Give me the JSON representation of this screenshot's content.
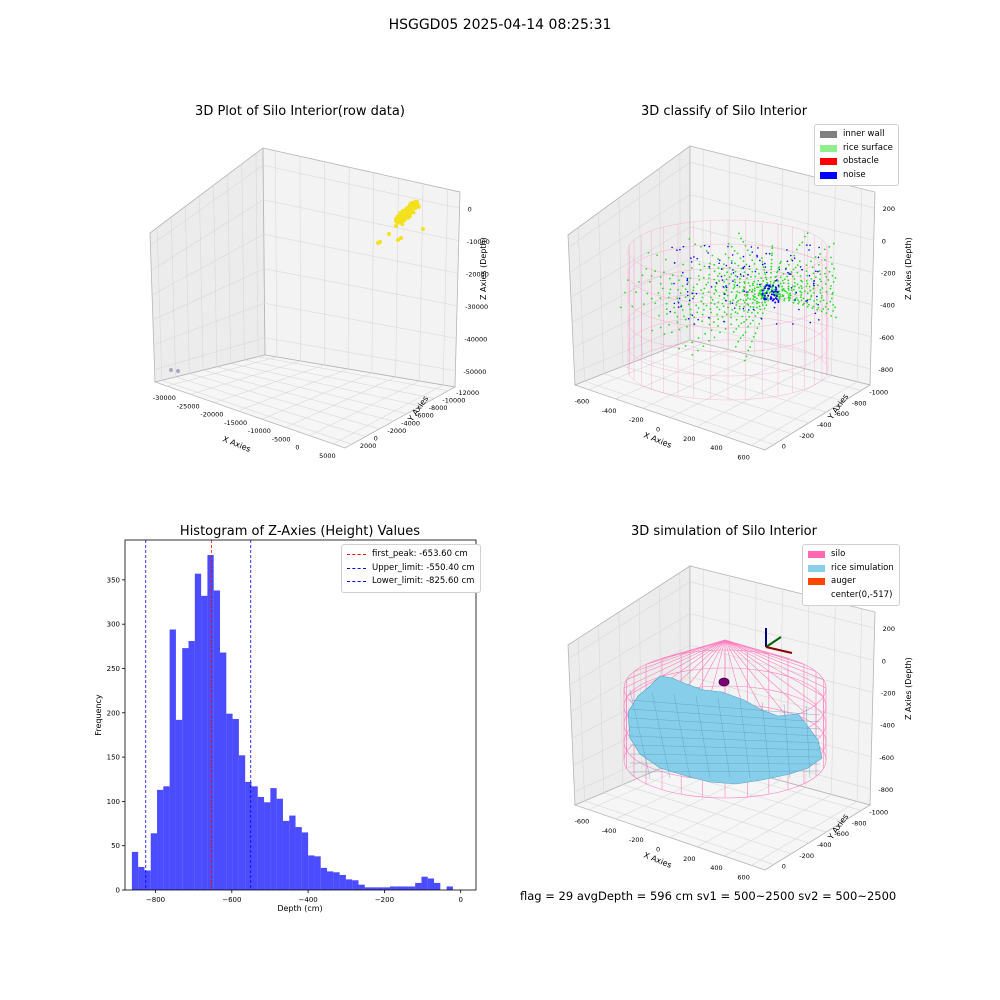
{
  "suptitle": "HSGGD05 2025-04-14 08:25:31",
  "footer": "flag = 29  avgDepth = 596 cm  sv1 = 500~2500  sv2 = 500~2500",
  "chart_data": [
    {
      "type": "scatter",
      "projection": "3d",
      "title": "3D Plot of Silo Interior(row data)",
      "xlabel": "X Axies",
      "ylabel": "Y Axies",
      "zlabel": "Z Axies (Depth)",
      "x_ticks": [
        "-30000",
        "-25000",
        "-20000",
        "-15000",
        "-10000",
        "-5000",
        "0",
        "5000"
      ],
      "y_ticks": [
        "-12000",
        "-10000",
        "-8000",
        "-6000",
        "-4000",
        "-2000",
        "0",
        "2000"
      ],
      "z_ticks": [
        "0",
        "-10000",
        "-20000",
        "-30000",
        "-40000",
        "-50000"
      ],
      "series": [
        {
          "color": "#f2e11c",
          "description": "dense cluster near x≈0, z≈0"
        },
        {
          "color": "#b0b0c8",
          "description": "two points near x≈-30000"
        }
      ],
      "grid": true
    },
    {
      "type": "scatter",
      "projection": "3d",
      "title": "3D classify of Silo Interior",
      "xlabel": "X Axies",
      "ylabel": "Y Axies",
      "zlabel": "Z Axies (Depth)",
      "x_ticks": [
        "-600",
        "-400",
        "-200",
        "0",
        "200",
        "400",
        "600"
      ],
      "y_ticks": [
        "-1000",
        "-800",
        "-600",
        "-400",
        "-200",
        "0"
      ],
      "z_ticks": [
        "200",
        "0",
        "-200",
        "-400",
        "-600",
        "-800"
      ],
      "legend": [
        {
          "label": "inner wall",
          "color": "#808080"
        },
        {
          "label": "rice surface",
          "color": "#90ee90"
        },
        {
          "label": "obstacle",
          "color": "#ff0000"
        },
        {
          "label": "noise",
          "color": "#0000ff"
        }
      ],
      "legend_position": "top-right",
      "grid": true
    },
    {
      "type": "bar",
      "title": "Histogram of Z-Axies (Height) Values",
      "xlabel": "Depth (cm)",
      "ylabel": "Frequency",
      "xlim": [
        -880,
        40
      ],
      "ylim": [
        0,
        395
      ],
      "x_ticks": [
        -800,
        -600,
        -400,
        -200,
        0
      ],
      "y_ticks": [
        0,
        50,
        100,
        150,
        200,
        250,
        300,
        350
      ],
      "bin_width": 16.5,
      "bin_start": -862,
      "values": [
        43,
        26,
        22,
        64,
        113,
        117,
        294,
        192,
        273,
        281,
        357,
        332,
        378,
        338,
        268,
        199,
        193,
        152,
        122,
        117,
        105,
        99,
        115,
        103,
        78,
        84,
        71,
        65,
        39,
        38,
        25,
        21,
        20,
        17,
        12,
        11,
        6,
        3,
        3,
        3,
        3,
        4,
        4,
        4,
        4,
        8,
        15,
        13,
        8,
        0,
        4
      ],
      "bar_color": "#0000ff",
      "lines": [
        {
          "label": "first_peak: -653.60 cm",
          "x": -653.6,
          "color": "#ff0000"
        },
        {
          "label": "Upper_limit: -550.40 cm",
          "x": -550.4,
          "color": "#0000ff"
        },
        {
          "label": "Lower_limit: -825.60 cm",
          "x": -825.6,
          "color": "#0000ff"
        }
      ],
      "legend_position": "top-right"
    },
    {
      "type": "surface",
      "projection": "3d",
      "title": "3D simulation of Silo Interior",
      "xlabel": "X Axies",
      "ylabel": "Y Axies",
      "zlabel": "Z Axies (Depth)",
      "x_ticks": [
        "-600",
        "-400",
        "-200",
        "0",
        "200",
        "400",
        "600"
      ],
      "y_ticks": [
        "-1000",
        "-800",
        "-600",
        "-400",
        "-200",
        "0"
      ],
      "z_ticks": [
        "200",
        "0",
        "-200",
        "-400",
        "-600",
        "-800"
      ],
      "legend": [
        {
          "label": "silo",
          "color": "#ff69b4"
        },
        {
          "label": "rice simulation",
          "color": "#87ceeb"
        },
        {
          "label": "auger",
          "color": "#ff4500"
        },
        {
          "label": "center(0,-517)",
          "color": "#ffffff"
        }
      ],
      "legend_position": "top-right",
      "grid": true
    }
  ]
}
